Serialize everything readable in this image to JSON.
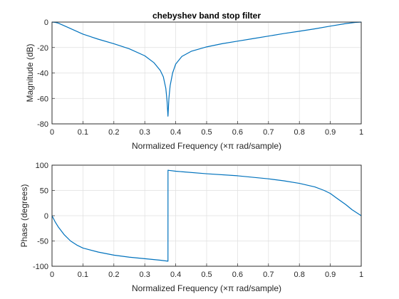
{
  "figure": {
    "title": "chebyshev band stop filter"
  },
  "chart_data": [
    {
      "type": "line",
      "title": "chebyshev band stop filter",
      "xlabel": "Normalized Frequency  (×π rad/sample)",
      "ylabel": "Magnitude (dB)",
      "xlim": [
        0,
        1
      ],
      "ylim": [
        -80,
        0
      ],
      "xticks": [
        0,
        0.1,
        0.2,
        0.3,
        0.4,
        0.5,
        0.6,
        0.7,
        0.8,
        0.9,
        1
      ],
      "xtick_labels": [
        "0",
        "0.1",
        "0.2",
        "0.3",
        "0.4",
        "0.5",
        "0.6",
        "0.7",
        "0.8",
        "0.9",
        "1"
      ],
      "yticks": [
        -80,
        -60,
        -40,
        -20,
        0
      ],
      "ytick_labels": [
        "-80",
        "-60",
        "-40",
        "-20",
        "0"
      ],
      "grid": true,
      "color": "#0072bd",
      "series": [
        {
          "x": [
            0,
            0.01,
            0.02,
            0.05,
            0.1,
            0.15,
            0.2,
            0.25,
            0.3,
            0.33,
            0.35,
            0.36,
            0.368,
            0.372,
            0.375,
            0.378,
            0.382,
            0.39,
            0.4,
            0.42,
            0.45,
            0.5,
            0.55,
            0.6,
            0.65,
            0.7,
            0.75,
            0.8,
            0.85,
            0.9,
            0.95,
            0.98,
            1.0
          ],
          "y": [
            0,
            -0.2,
            -0.8,
            -4,
            -9.5,
            -13.5,
            -17,
            -21,
            -26.5,
            -32,
            -38,
            -43,
            -52,
            -62,
            -74,
            -60,
            -50,
            -40,
            -33,
            -27,
            -23,
            -19.5,
            -17,
            -15,
            -13,
            -11,
            -9,
            -7.2,
            -5.3,
            -3.2,
            -1.2,
            -0.3,
            0
          ]
        }
      ]
    },
    {
      "type": "line",
      "title": "",
      "xlabel": "Normalized Frequency  (×π rad/sample)",
      "ylabel": "Phase (degrees)",
      "xlim": [
        0,
        1
      ],
      "ylim": [
        -100,
        100
      ],
      "xticks": [
        0,
        0.1,
        0.2,
        0.3,
        0.4,
        0.5,
        0.6,
        0.7,
        0.8,
        0.9,
        1
      ],
      "xtick_labels": [
        "0",
        "0.1",
        "0.2",
        "0.3",
        "0.4",
        "0.5",
        "0.6",
        "0.7",
        "0.8",
        "0.9",
        "1"
      ],
      "yticks": [
        -100,
        -50,
        0,
        50,
        100
      ],
      "ytick_labels": [
        "-100",
        "-50",
        "0",
        "50",
        "100"
      ],
      "grid": true,
      "color": "#0072bd",
      "series": [
        {
          "x": [
            0,
            0.01,
            0.02,
            0.04,
            0.06,
            0.08,
            0.1,
            0.15,
            0.2,
            0.25,
            0.3,
            0.35,
            0.375,
            0.3751,
            0.38,
            0.4,
            0.5,
            0.6,
            0.7,
            0.75,
            0.8,
            0.85,
            0.88,
            0.9,
            0.92,
            0.95,
            0.97,
            1.0
          ],
          "y": [
            0,
            -12,
            -22,
            -38,
            -50,
            -58,
            -64,
            -72,
            -78,
            -82,
            -85,
            -88,
            -90,
            90,
            89.5,
            88,
            83,
            79,
            73,
            69,
            64,
            57,
            50,
            44,
            35,
            22,
            12,
            0
          ]
        }
      ]
    }
  ]
}
